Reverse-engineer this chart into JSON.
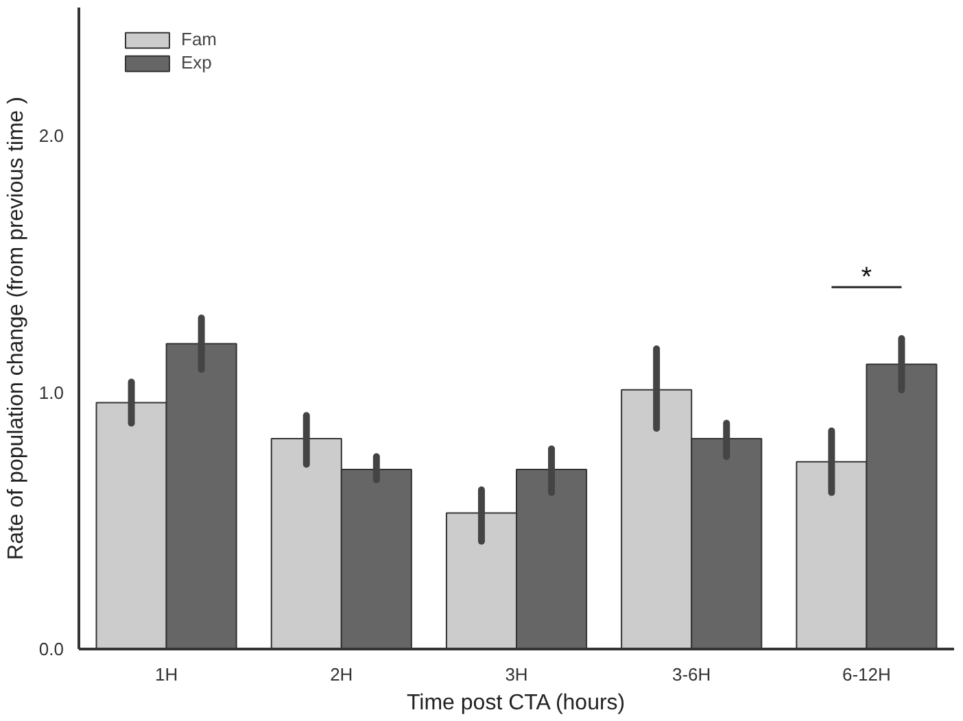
{
  "chart_data": {
    "type": "bar",
    "xlabel": "Time post CTA (hours)",
    "ylabel": "Rate of population change (from previous time )",
    "categories": [
      "1H",
      "2H",
      "3H",
      "3-6H",
      "6-12H"
    ],
    "series": [
      {
        "name": "Fam",
        "color": "#cccccc",
        "values": [
          0.96,
          0.82,
          0.53,
          1.01,
          0.73
        ],
        "errors": [
          [
            0.88,
            1.04
          ],
          [
            0.72,
            0.91
          ],
          [
            0.42,
            0.62
          ],
          [
            0.86,
            1.17
          ],
          [
            0.61,
            0.85
          ]
        ]
      },
      {
        "name": "Exp",
        "color": "#666666",
        "values": [
          1.19,
          0.7,
          0.7,
          0.82,
          1.11
        ],
        "errors": [
          [
            1.09,
            1.29
          ],
          [
            0.66,
            0.75
          ],
          [
            0.61,
            0.78
          ],
          [
            0.75,
            0.88
          ],
          [
            1.01,
            1.21
          ]
        ]
      }
    ],
    "ylim": [
      0,
      2.5
    ],
    "yticks": [
      {
        "value": 0,
        "label": "0.0"
      },
      {
        "value": 1,
        "label": "1.0"
      },
      {
        "value": 2,
        "label": "2.0"
      }
    ],
    "grid": false,
    "legend": "top left",
    "annotations": [
      "*"
    ]
  }
}
